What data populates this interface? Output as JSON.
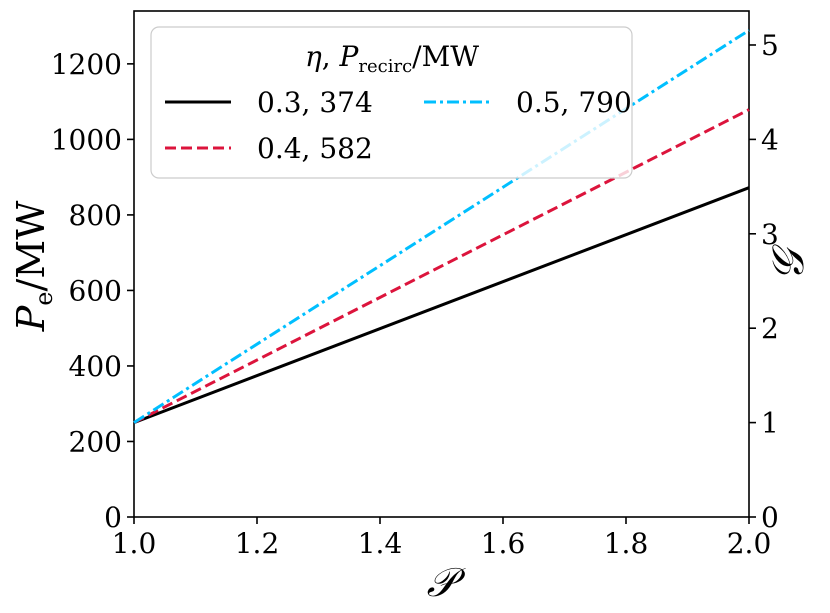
{
  "chart_data": {
    "type": "line",
    "title": "",
    "xlabel": "𝒫",
    "ylabel_left": {
      "main": "P",
      "sub": "e",
      "unit": "/MW"
    },
    "ylabel_right": "𝒢",
    "xlim": [
      1.0,
      2.0
    ],
    "ylim_left": [
      0,
      1340
    ],
    "ylim_right": [
      0,
      5.36
    ],
    "x_ticks": [
      "1.0",
      "1.2",
      "1.4",
      "1.6",
      "1.8",
      "2.0"
    ],
    "y_ticks_left": [
      "0",
      "200",
      "400",
      "600",
      "800",
      "1000",
      "1200"
    ],
    "y_ticks_right": [
      "0",
      "1",
      "2",
      "3",
      "4",
      "5"
    ],
    "grid": false,
    "legend": {
      "position": "top-left",
      "title": {
        "eta": "η",
        "p": "P",
        "sub": "recirc",
        "unit": "/MW"
      },
      "columns": 2
    },
    "series": [
      {
        "name": "0.3, 374",
        "x": [
          1.0,
          2.0
        ],
        "y": [
          250,
          872
        ],
        "color": "#000000",
        "dash": "solid"
      },
      {
        "name": "0.4, 582",
        "x": [
          1.0,
          2.0
        ],
        "y": [
          250,
          1079
        ],
        "color": "#dc143c",
        "dash": "dashed"
      },
      {
        "name": "0.5, 790",
        "x": [
          1.0,
          2.0
        ],
        "y": [
          250,
          1289
        ],
        "color": "#00bfff",
        "dash": "dashdot"
      }
    ]
  }
}
